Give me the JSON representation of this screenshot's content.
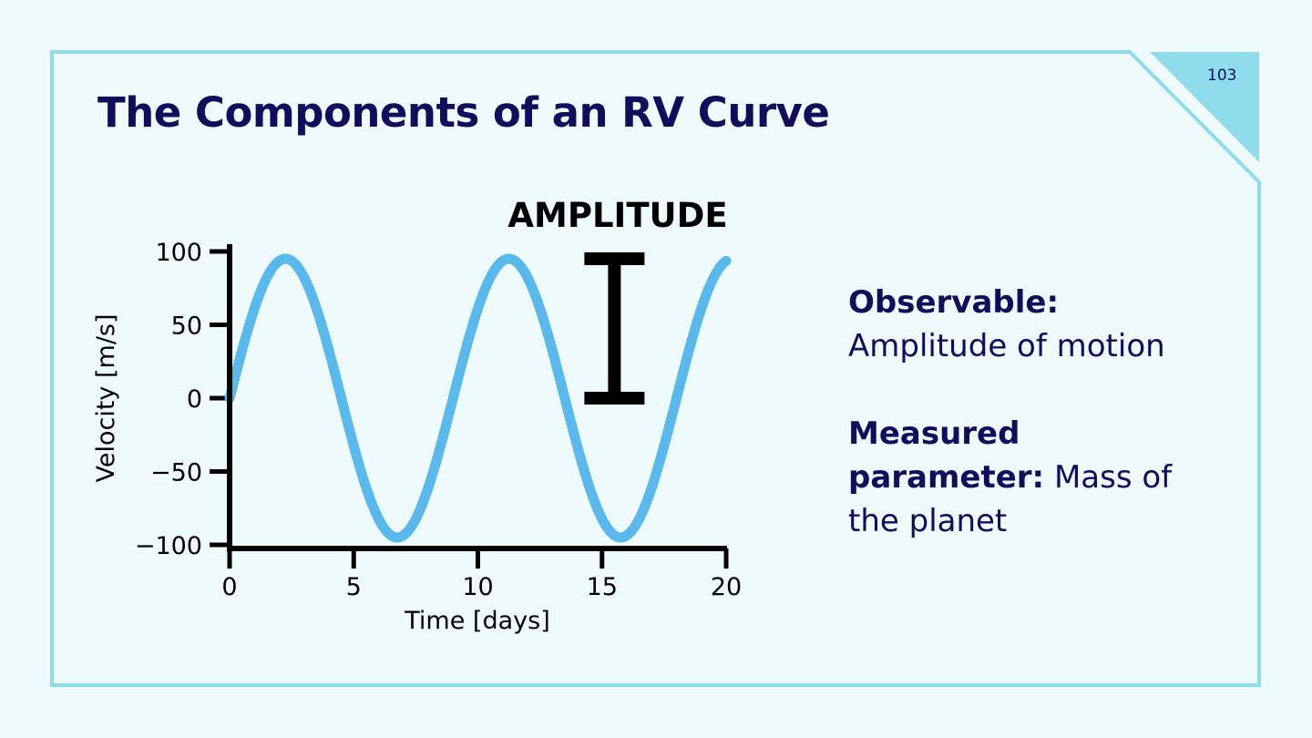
{
  "slide": {
    "title": "The Components of an RV Curve",
    "page_number": "103"
  },
  "info": {
    "observable_label": "Observable:",
    "observable_value": "Amplitude of motion",
    "measured_label": "Measured parameter:",
    "measured_value": "Mass of the planet"
  },
  "colors": {
    "background": "#eefafc",
    "frame": "#8fdcec",
    "title": "#0d0f5c",
    "curve": "#5ab9ec"
  },
  "chart_data": {
    "type": "line",
    "title": "",
    "xlabel": "Time [days]",
    "ylabel": "Velocity [m/s]",
    "xlim": [
      0,
      20
    ],
    "ylim": [
      -100,
      100
    ],
    "xticks": [
      0,
      5,
      10,
      15,
      20
    ],
    "yticks": [
      100,
      50,
      0,
      -50,
      -100
    ],
    "grid": false,
    "legend": "none",
    "series": [
      {
        "amplitude": 95,
        "period_days": 9,
        "x": [
          0,
          1,
          2,
          3,
          4,
          5,
          6,
          7,
          8,
          9,
          10,
          11,
          12,
          13,
          14,
          15,
          16,
          17,
          18,
          19,
          20
        ],
        "values": [
          0,
          61,
          94,
          82,
          33,
          -33,
          -82,
          -94,
          -61,
          0,
          61,
          94,
          82,
          33,
          -33,
          -82,
          -94,
          -61,
          0,
          61,
          94
        ]
      }
    ],
    "annotations": [
      {
        "text": "AMPLITUDE",
        "type": "bracket",
        "x": 15.5,
        "y_from": 0,
        "y_to": 95
      }
    ]
  }
}
